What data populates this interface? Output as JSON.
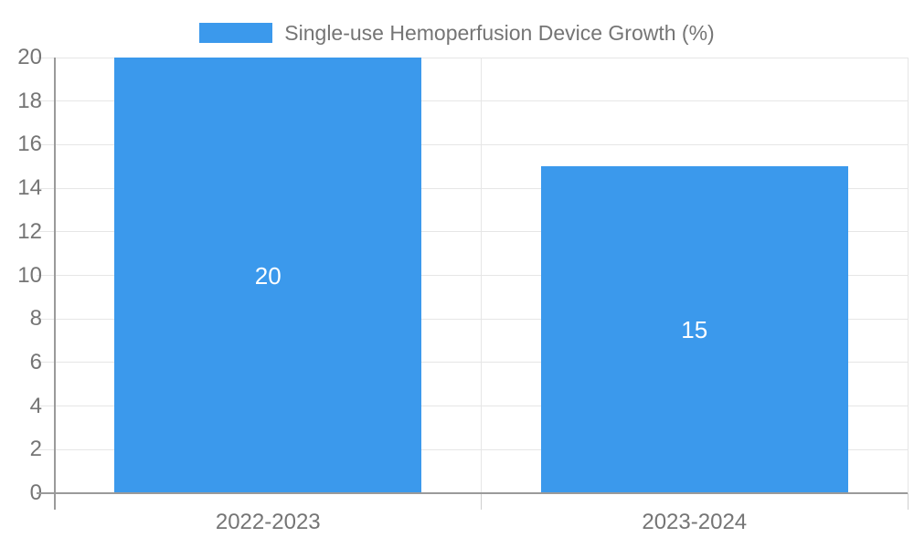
{
  "chart_data": {
    "type": "bar",
    "title": "Single-use Hemoperfusion Device Growth (%)",
    "categories": [
      "2022-2023",
      "2023-2024"
    ],
    "values": [
      20,
      15
    ],
    "data_labels": [
      "20",
      "15"
    ],
    "yticks": [
      0,
      2,
      4,
      6,
      8,
      10,
      12,
      14,
      16,
      18,
      20
    ],
    "ylim": [
      0,
      20
    ],
    "xlabel": "",
    "ylabel": "",
    "grid": true,
    "legend_position": "top",
    "colors": {
      "bar": "#3B99EC",
      "grid_line": "#E6E6E6",
      "axis_line": "#9A9A9A",
      "category_tick": "#CFCFCF",
      "text": "#757575",
      "bar_label": "#FFFFFF",
      "background": "#FFFFFF"
    }
  }
}
